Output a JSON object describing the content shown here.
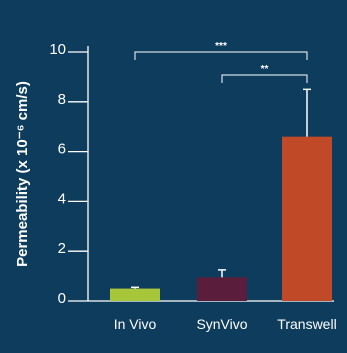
{
  "chart_data": {
    "type": "bar",
    "categories": [
      "In Vivo",
      "SynVivo",
      "Transwell"
    ],
    "values": [
      0.5,
      0.95,
      6.6
    ],
    "error_upper": [
      0.05,
      0.3,
      1.9
    ],
    "colors": [
      "#a7c63a",
      "#5a1d3c",
      "#c04a28"
    ],
    "ylabel": "Permeability (x 10⁻⁶ cm/s)",
    "ylim": [
      0,
      10
    ],
    "yticks": [
      0,
      2,
      4,
      6,
      8,
      10
    ],
    "y_tick_labels": [
      "0",
      "2",
      "4",
      "6",
      "8",
      "10"
    ],
    "significance": [
      {
        "from": "In Vivo",
        "to": "Transwell",
        "label": "***"
      },
      {
        "from": "SynVivo",
        "to": "Transwell",
        "label": "**"
      }
    ]
  }
}
